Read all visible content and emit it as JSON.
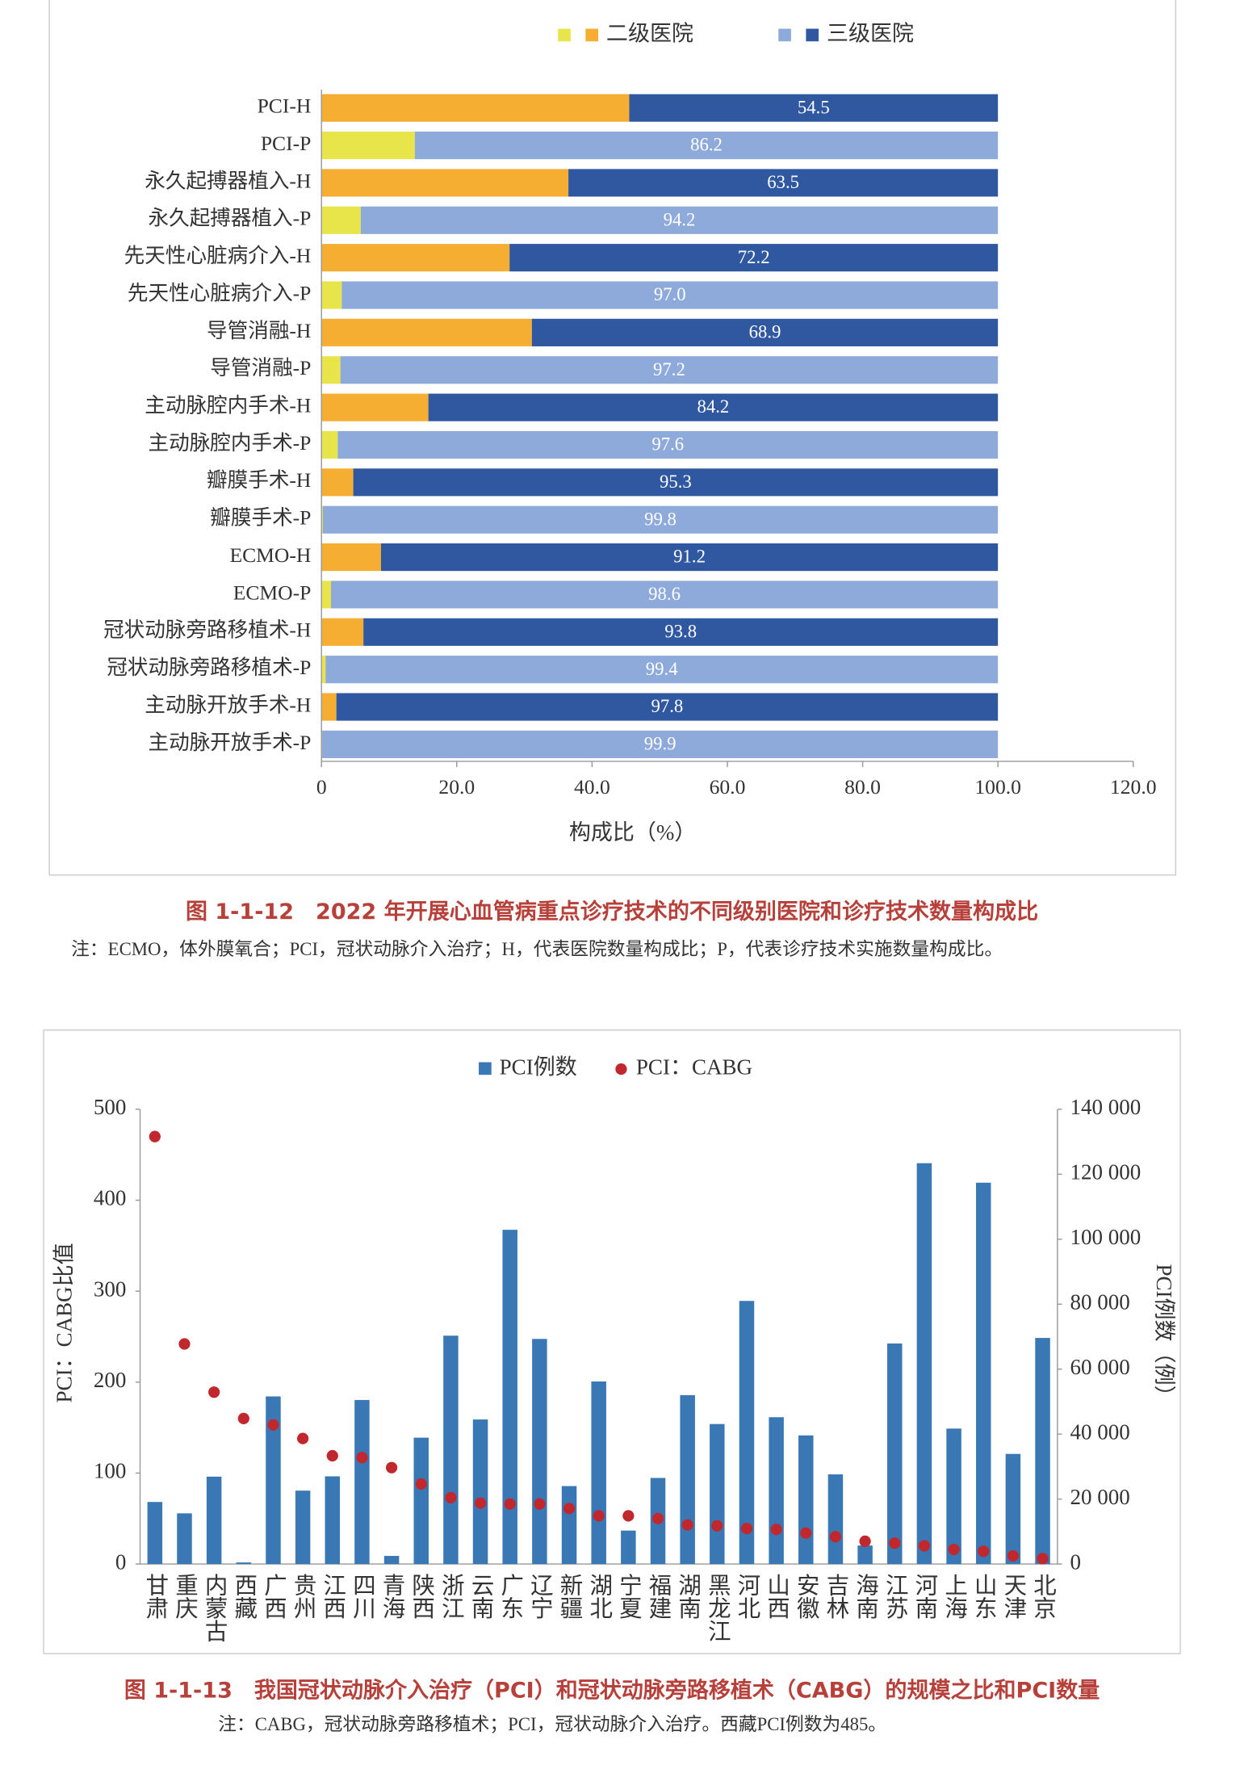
{
  "chart_data": [
    {
      "type": "bar",
      "orientation": "horizontal",
      "stacked": true,
      "categories": [
        "PCI-H",
        "PCI-P",
        "永久起搏器植入-H",
        "永久起搏器植入-P",
        "先天性心脏病介入-H",
        "先天性心脏病介入-P",
        "导管消融-H",
        "导管消融-P",
        "主动脉腔内手术-H",
        "主动脉腔内手术-P",
        "瓣膜手术-H",
        "瓣膜手术-P",
        "ECMO-H",
        "ECMO-P",
        "冠状动脉旁路移植术-H",
        "冠状动脉旁路移植术-P",
        "主动脉开放手术-H",
        "主动脉开放手术-P"
      ],
      "series": [
        {
          "name": "二级医院",
          "colors": [
            "#f5ad32",
            "#e8e54a"
          ],
          "values": [
            45.5,
            13.8,
            36.5,
            5.8,
            27.8,
            3.0,
            31.1,
            2.8,
            15.8,
            2.4,
            4.7,
            0.2,
            8.8,
            1.4,
            6.2,
            0.6,
            2.2,
            0.1
          ]
        },
        {
          "name": "三级医院",
          "colors": [
            "#2f58a0",
            "#8eaadb"
          ],
          "values": [
            54.5,
            86.2,
            63.5,
            94.2,
            72.2,
            97.0,
            68.9,
            97.2,
            84.2,
            97.6,
            95.3,
            99.8,
            91.2,
            98.6,
            93.8,
            99.4,
            97.8,
            99.9
          ],
          "value_labels": [
            "54.5",
            "86.2",
            "63.5",
            "94.2",
            "72.2",
            "97.0",
            "68.9",
            "97.2",
            "84.2",
            "97.6",
            "95.3",
            "99.8",
            "91.2",
            "98.6",
            "93.8",
            "99.4",
            "97.8",
            "99.9"
          ]
        }
      ],
      "xlim": [
        0,
        120
      ],
      "xticks": [
        0,
        {
          "value": 20,
          "label": "20.0"
        },
        {
          "value": 40,
          "label": "40.0"
        },
        {
          "value": 60,
          "label": "60.0"
        },
        {
          "value": 80,
          "label": "80.0"
        },
        {
          "value": 100,
          "label": "100.0"
        },
        {
          "value": 120,
          "label": "120.0"
        }
      ],
      "xlabel": "构成比（%）",
      "grid": false,
      "legend": "top",
      "caption": "图 1-1-12　2022 年开展心血管病重点诊疗技术的不同级别医院和诊疗技术数量构成比",
      "note": "注：ECMO，体外膜氧合；PCI，冠状动脉介入治疗；H，代表医院数量构成比；P，代表诊疗技术实施数量构成比。"
    },
    {
      "type": "combo",
      "categories": [
        "甘肃",
        "重庆",
        "内蒙古",
        "西藏",
        "广西",
        "贵州",
        "江西",
        "四川",
        "青海",
        "陕西",
        "浙江",
        "云南",
        "广东",
        "辽宁",
        "新疆",
        "湖北",
        "宁夏",
        "福建",
        "湖南",
        "黑龙江",
        "河北",
        "山西",
        "安徽",
        "吉林",
        "海南",
        "江苏",
        "河南",
        "上海",
        "山东",
        "天津",
        "北京"
      ],
      "series": [
        {
          "name": "PCI例数",
          "type": "bar",
          "axis": "y2",
          "color": "#3a78b5",
          "values": [
            19100,
            15600,
            26900,
            485,
            51600,
            22600,
            27000,
            50500,
            2500,
            38900,
            70300,
            44500,
            102900,
            69300,
            24000,
            56200,
            10300,
            26500,
            52000,
            43100,
            81000,
            45200,
            39600,
            27600,
            5700,
            67900,
            123400,
            41700,
            117400,
            33900,
            69600
          ]
        },
        {
          "name": "PCI：CABG",
          "type": "scatter",
          "color": "#c0282d",
          "values": [
            470,
            242,
            189,
            160,
            153,
            138,
            119,
            117,
            106,
            88,
            73,
            67,
            66,
            66,
            61,
            53,
            53,
            50,
            43,
            42,
            39,
            38,
            34,
            30,
            25,
            23,
            20,
            16,
            14,
            9,
            6
          ]
        }
      ],
      "ylim": [
        0,
        500
      ],
      "yticks": [
        0,
        100,
        200,
        300,
        400,
        500
      ],
      "y2lim": [
        0,
        140000
      ],
      "y2ticks": [
        0,
        {
          "value": 20000,
          "label": "20 000"
        },
        {
          "value": 40000,
          "label": "40 000"
        },
        {
          "value": 60000,
          "label": "60 000"
        },
        {
          "value": 80000,
          "label": "80 000"
        },
        {
          "value": 100000,
          "label": "100 000"
        },
        {
          "value": 120000,
          "label": "120 000"
        },
        {
          "value": 140000,
          "label": "140 000"
        }
      ],
      "ylabel": "PCI：CABG比值",
      "y2label": "PCI例数（例）",
      "grid": false,
      "legend": "top",
      "caption": "图 1-1-13　我国冠状动脉介入治疗（PCI）和冠状动脉旁路移植术（CABG）的规模之比和PCI数量",
      "note": "注：CABG，冠状动脉旁路移植术；PCI，冠状动脉介入治疗。西藏PCI例数为485。"
    }
  ]
}
